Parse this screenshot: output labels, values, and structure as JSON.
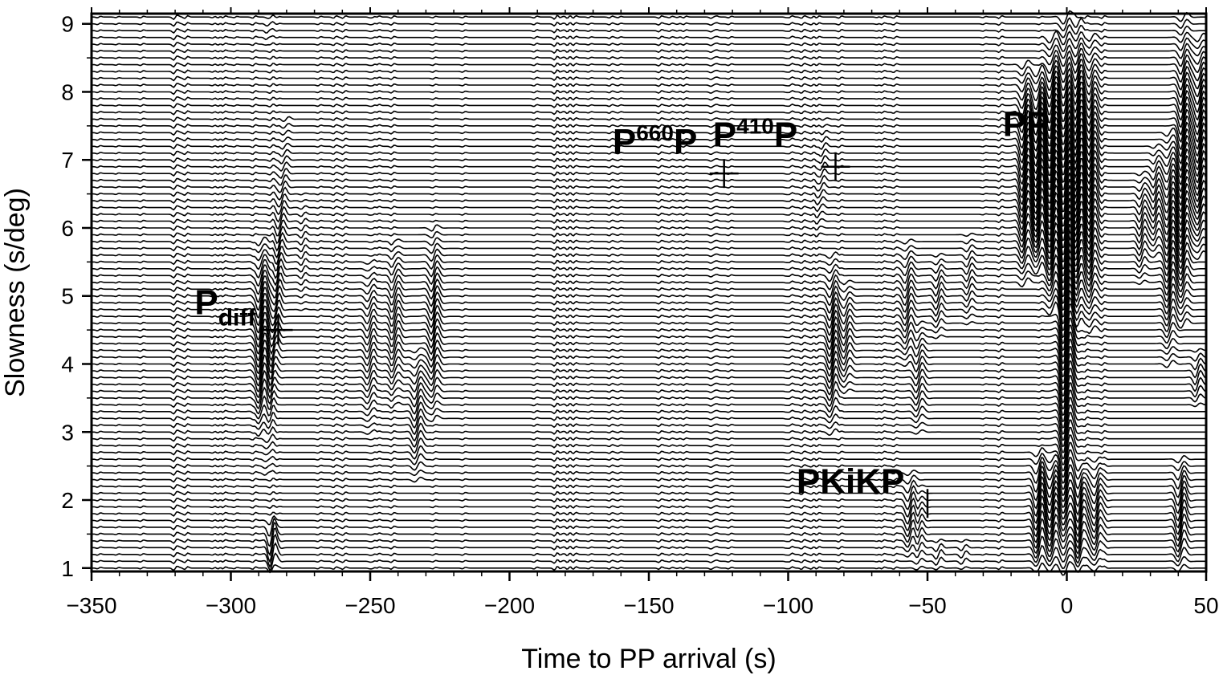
{
  "chart_data": {
    "type": "line",
    "title": "",
    "xlabel": "Time to PP arrival (s)",
    "ylabel": "Slowness (s/deg)",
    "xlim": [
      -350,
      50
    ],
    "ylim": [
      0.95,
      9.15
    ],
    "x_ticks": [
      -350,
      -300,
      -250,
      -200,
      -150,
      -100,
      -50,
      0,
      50
    ],
    "x_tick_labels": [
      "−350",
      "−300",
      "−250",
      "−200",
      "−150",
      "−100",
      "−50",
      "0",
      "50"
    ],
    "y_ticks": [
      1,
      2,
      3,
      4,
      5,
      6,
      7,
      8,
      9
    ],
    "y_tick_labels": [
      "1",
      "2",
      "3",
      "4",
      "5",
      "6",
      "7",
      "8",
      "9"
    ],
    "grid": false,
    "trace_slowness": {
      "start": 1.0,
      "end": 9.1,
      "step": 0.1
    },
    "phases": [
      {
        "id": "pdiff",
        "label": "P",
        "sub": "diff",
        "sup": "",
        "tail": "",
        "text_x": -313,
        "text_y": 4.73,
        "marker": [
          -283,
          4.5
        ],
        "marker_type": "cross"
      },
      {
        "id": "p660p",
        "label": "P",
        "sup": "660",
        "sub": "",
        "tail": "P",
        "text_x": -163,
        "text_y": 7.1,
        "marker": [
          -123,
          6.8
        ],
        "marker_type": "cross"
      },
      {
        "id": "p410p",
        "label": "P",
        "sup": "410",
        "sub": "",
        "tail": "P",
        "text_x": -127,
        "text_y": 7.2,
        "marker": [
          -83,
          6.9
        ],
        "marker_type": "cross"
      },
      {
        "id": "pkikp",
        "label": "PKiKP",
        "sup": "",
        "sub": "",
        "tail": "",
        "text_x": -97,
        "text_y": 2.1,
        "marker": [
          -50,
          1.95
        ],
        "marker_type": "bar"
      },
      {
        "id": "pp",
        "label": "PP",
        "sup": "",
        "sub": "",
        "tail": "",
        "text_x": -23,
        "text_y": 7.35,
        "marker": null,
        "marker_type": "none"
      }
    ],
    "arrivals": [
      {
        "t0": -288,
        "slope": -0.8,
        "s_min": 1.0,
        "s_max": 1.7,
        "amp": 22,
        "period": 2.6
      },
      {
        "t0": -292,
        "slope": 1.4,
        "s_min": 8.7,
        "s_max": 9.1,
        "amp": 4,
        "period": 2.0
      },
      {
        "t0": -289,
        "slope": 0.0,
        "s_min": 3.0,
        "s_max": 5.8,
        "amp": 30,
        "period": 3.2
      },
      {
        "t0": -283.5,
        "slope": 1.3,
        "s_min": 2.4,
        "s_max": 7.6,
        "amp": 16,
        "period": 2.6
      },
      {
        "t0": -274,
        "slope": 0.0,
        "s_min": 4.8,
        "s_max": 6.5,
        "amp": 6,
        "period": 2.2
      },
      {
        "t0": -250,
        "slope": 0.0,
        "s_min": 3.0,
        "s_max": 5.5,
        "amp": 14,
        "period": 3.0
      },
      {
        "t0": -241,
        "slope": 0.0,
        "s_min": 3.4,
        "s_max": 5.8,
        "amp": 16,
        "period": 3.0
      },
      {
        "t0": -233,
        "slope": 0.0,
        "s_min": 2.3,
        "s_max": 4.2,
        "amp": 16,
        "period": 3.0
      },
      {
        "t0": -227,
        "slope": 0.0,
        "s_min": 3.2,
        "s_max": 6.0,
        "amp": 18,
        "period": 3.0
      },
      {
        "t0": -90,
        "slope": 1.2,
        "s_min": 5.9,
        "s_max": 7.6,
        "amp": 8,
        "period": 2.4
      },
      {
        "t0": -84,
        "slope": 0.0,
        "s_min": 3.0,
        "s_max": 5.6,
        "amp": 22,
        "period": 3.0
      },
      {
        "t0": -79,
        "slope": 0.0,
        "s_min": 3.6,
        "s_max": 5.2,
        "amp": 14,
        "period": 3.0
      },
      {
        "t0": -57,
        "slope": 0.0,
        "s_min": 4.0,
        "s_max": 5.8,
        "amp": 16,
        "period": 3.0
      },
      {
        "t0": -53,
        "slope": 0.0,
        "s_min": 3.0,
        "s_max": 4.6,
        "amp": 14,
        "period": 3.0
      },
      {
        "t0": -46,
        "slope": 0.0,
        "s_min": 4.4,
        "s_max": 5.6,
        "amp": 12,
        "period": 2.6
      },
      {
        "t0": -35,
        "slope": 0.0,
        "s_min": 4.6,
        "s_max": 5.9,
        "amp": 10,
        "period": 2.6
      },
      {
        "t0": -56,
        "slope": 0.0,
        "s_min": 1.2,
        "s_max": 2.4,
        "amp": 18,
        "period": 3.0
      },
      {
        "t0": -53,
        "slope": 0.0,
        "s_min": 1.0,
        "s_max": 2.2,
        "amp": 12,
        "period": 2.6
      },
      {
        "t0": -46,
        "slope": 0.0,
        "s_min": 1.0,
        "s_max": 1.4,
        "amp": 8,
        "period": 2.4
      },
      {
        "t0": -37,
        "slope": 0.0,
        "s_min": 1.0,
        "s_max": 1.4,
        "amp": 6,
        "period": 2.4
      },
      {
        "t0": -15,
        "slope": 0.0,
        "s_min": 5.2,
        "s_max": 8.4,
        "amp": 30,
        "period": 3.0
      },
      {
        "t0": -10,
        "slope": 0.0,
        "s_min": 5.4,
        "s_max": 8.3,
        "amp": 34,
        "period": 3.0
      },
      {
        "t0": -5,
        "slope": 0.0,
        "s_min": 4.8,
        "s_max": 8.8,
        "amp": 38,
        "period": 3.2
      },
      {
        "t0": 0,
        "slope": 0.0,
        "s_min": 1.0,
        "s_max": 9.1,
        "amp": 48,
        "period": 3.4
      },
      {
        "t0": 4,
        "slope": 0.0,
        "s_min": 4.6,
        "s_max": 9.0,
        "amp": 38,
        "period": 3.2
      },
      {
        "t0": 9,
        "slope": 0.0,
        "s_min": 4.5,
        "s_max": 8.8,
        "amp": 28,
        "period": 3.0
      },
      {
        "t0": -10,
        "slope": 0.0,
        "s_min": 1.0,
        "s_max": 2.7,
        "amp": 28,
        "period": 3.0
      },
      {
        "t0": -5,
        "slope": 0.0,
        "s_min": 1.0,
        "s_max": 2.6,
        "amp": 22,
        "period": 3.0
      },
      {
        "t0": 5,
        "slope": 0.0,
        "s_min": 1.0,
        "s_max": 2.5,
        "amp": 26,
        "period": 3.0
      },
      {
        "t0": 11,
        "slope": 0.0,
        "s_min": 1.0,
        "s_max": 2.6,
        "amp": 20,
        "period": 3.0
      },
      {
        "t0": 27,
        "slope": 0.0,
        "s_min": 5.2,
        "s_max": 6.8,
        "amp": 14,
        "period": 2.6
      },
      {
        "t0": 32,
        "slope": 0.0,
        "s_min": 5.6,
        "s_max": 7.2,
        "amp": 14,
        "period": 2.6
      },
      {
        "t0": 37,
        "slope": 0.0,
        "s_min": 4.0,
        "s_max": 7.4,
        "amp": 24,
        "period": 3.0
      },
      {
        "t0": 42,
        "slope": 0.0,
        "s_min": 4.6,
        "s_max": 9.1,
        "amp": 30,
        "period": 3.0
      },
      {
        "t0": 48,
        "slope": 0.0,
        "s_min": 5.6,
        "s_max": 8.8,
        "amp": 28,
        "period": 3.0
      },
      {
        "t0": 41,
        "slope": 0.0,
        "s_min": 1.0,
        "s_max": 2.6,
        "amp": 24,
        "period": 3.0
      },
      {
        "t0": 47,
        "slope": 0.0,
        "s_min": 3.4,
        "s_max": 4.2,
        "amp": 12,
        "period": 2.6
      }
    ]
  }
}
